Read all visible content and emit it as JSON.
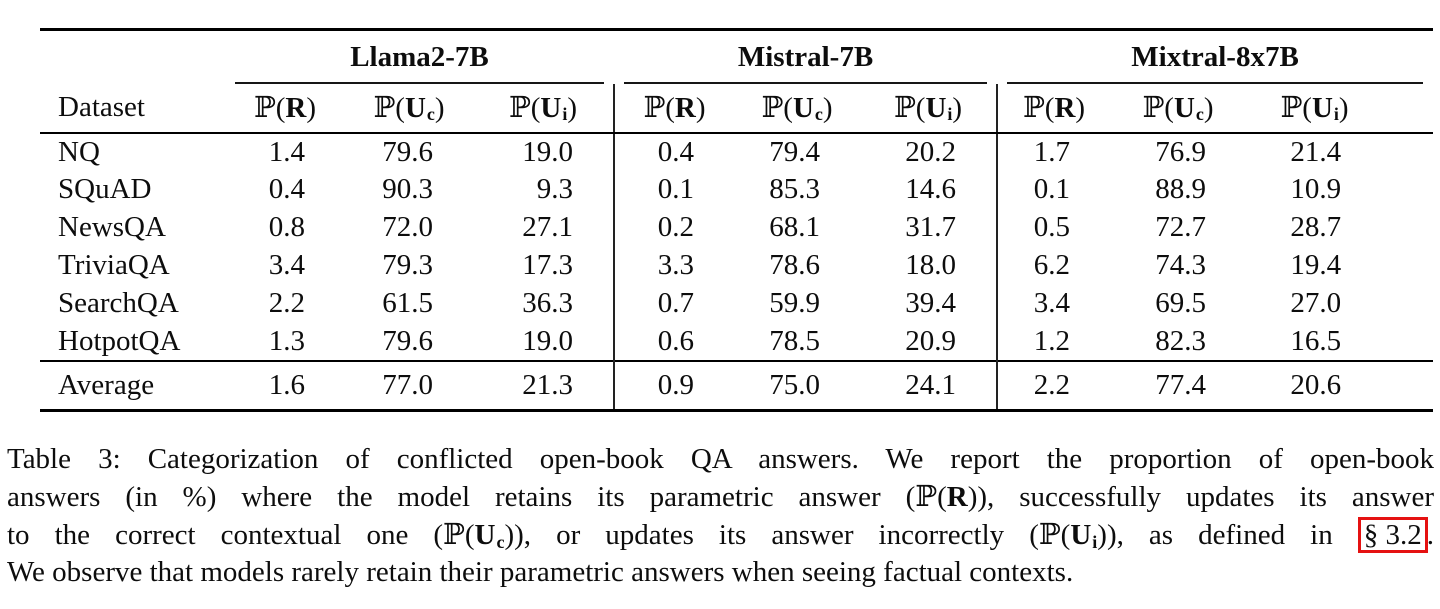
{
  "table": {
    "dataset_header": "Dataset",
    "model_groups": [
      {
        "name": "Llama2-7B"
      },
      {
        "name": "Mistral-7B"
      },
      {
        "name": "Mixtral-8x7B"
      }
    ],
    "prob_headers": [
      {
        "arg": "R",
        "sub": ""
      },
      {
        "arg": "U",
        "sub": "c"
      },
      {
        "arg": "U",
        "sub": "i"
      }
    ],
    "rows": [
      {
        "dataset": "NQ",
        "values": [
          "1.4",
          "79.6",
          "19.0",
          "0.4",
          "79.4",
          "20.2",
          "1.7",
          "76.9",
          "21.4"
        ]
      },
      {
        "dataset": "SQuAD",
        "values": [
          "0.4",
          "90.3",
          "9.3",
          "0.1",
          "85.3",
          "14.6",
          "0.1",
          "88.9",
          "10.9"
        ]
      },
      {
        "dataset": "NewsQA",
        "values": [
          "0.8",
          "72.0",
          "27.1",
          "0.2",
          "68.1",
          "31.7",
          "0.5",
          "72.7",
          "28.7"
        ]
      },
      {
        "dataset": "TriviaQA",
        "values": [
          "3.4",
          "79.3",
          "17.3",
          "3.3",
          "78.6",
          "18.0",
          "6.2",
          "74.3",
          "19.4"
        ]
      },
      {
        "dataset": "SearchQA",
        "values": [
          "2.2",
          "61.5",
          "36.3",
          "0.7",
          "59.9",
          "39.4",
          "3.4",
          "69.5",
          "27.0"
        ]
      },
      {
        "dataset": "HotpotQA",
        "values": [
          "1.3",
          "79.6",
          "19.0",
          "0.6",
          "78.5",
          "20.9",
          "1.2",
          "82.3",
          "16.5"
        ]
      }
    ],
    "average_row": {
      "dataset": "Average",
      "values": [
        "1.6",
        "77.0",
        "21.3",
        "0.9",
        "75.0",
        "24.1",
        "2.2",
        "77.4",
        "20.6"
      ]
    }
  },
  "caption": {
    "lines": [
      {
        "justify": true,
        "segments": [
          {
            "t": "Table 3: Categorization of conflicted open-book QA answers. We report the proportion of open-book"
          }
        ]
      },
      {
        "justify": true,
        "segments": [
          {
            "t": "answers (in %) where the model retains its parametric answer ("
          },
          {
            "m": {
              "arg": "R",
              "sub": ""
            }
          },
          {
            "t": "), successfully updates its answer"
          }
        ]
      },
      {
        "justify": true,
        "segments": [
          {
            "t": "to the correct contextual one ("
          },
          {
            "m": {
              "arg": "U",
              "sub": "c"
            }
          },
          {
            "t": "), or updates its answer incorrectly ("
          },
          {
            "m": {
              "arg": "U",
              "sub": "i"
            }
          },
          {
            "t": "), as defined in "
          },
          {
            "box": "§ 3.2"
          },
          {
            "t": "."
          }
        ]
      },
      {
        "justify": false,
        "segments": [
          {
            "t": "We observe that models rarely retain their parametric answers when seeing factual contexts."
          }
        ]
      }
    ]
  },
  "symbols": {
    "blackboard_p": "ℙ"
  },
  "colors": {
    "rule": "#000000",
    "link_box": "#e51111",
    "text": "#0d0d0d"
  }
}
